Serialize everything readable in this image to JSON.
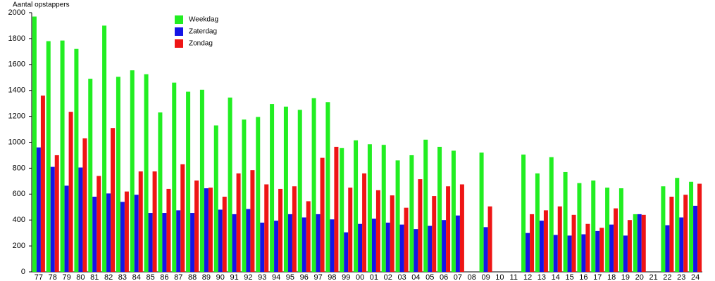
{
  "chart_data": {
    "type": "bar",
    "y_label": "Aantal opstappers",
    "categories": [
      "77",
      "78",
      "79",
      "80",
      "81",
      "82",
      "83",
      "84",
      "85",
      "86",
      "87",
      "88",
      "89",
      "90",
      "91",
      "92",
      "93",
      "94",
      "95",
      "96",
      "97",
      "98",
      "99",
      "00",
      "01",
      "02",
      "03",
      "04",
      "05",
      "06",
      "07",
      "08",
      "09",
      "10",
      "11",
      "12",
      "13",
      "14",
      "15",
      "16",
      "17",
      "18",
      "19",
      "20",
      "21",
      "22",
      "23",
      "24"
    ],
    "series": [
      {
        "name": "Weekdag",
        "color": "#22ee22",
        "values": [
          1970,
          1780,
          1785,
          1720,
          1490,
          1900,
          1505,
          1555,
          1525,
          1230,
          1460,
          1390,
          1405,
          1130,
          1345,
          1175,
          1195,
          1295,
          1275,
          1250,
          1340,
          1310,
          955,
          1015,
          985,
          980,
          860,
          900,
          1020,
          965,
          935,
          null,
          920,
          null,
          null,
          905,
          760,
          885,
          770,
          685,
          705,
          650,
          645,
          445,
          null,
          660,
          725,
          695
        ]
      },
      {
        "name": "Zaterdag",
        "color": "#1515e6",
        "values": [
          960,
          810,
          665,
          805,
          580,
          605,
          540,
          595,
          455,
          455,
          475,
          455,
          645,
          480,
          445,
          485,
          380,
          395,
          445,
          420,
          445,
          405,
          305,
          370,
          410,
          380,
          365,
          330,
          355,
          400,
          435,
          null,
          345,
          null,
          null,
          300,
          395,
          285,
          280,
          290,
          315,
          365,
          280,
          445,
          null,
          360,
          420,
          510
        ]
      },
      {
        "name": "Zondag",
        "color": "#ee1515",
        "values": [
          1360,
          900,
          1235,
          1030,
          740,
          1110,
          620,
          775,
          775,
          640,
          830,
          705,
          650,
          580,
          760,
          785,
          675,
          640,
          660,
          545,
          880,
          965,
          650,
          760,
          630,
          590,
          495,
          715,
          585,
          660,
          675,
          null,
          505,
          null,
          null,
          445,
          475,
          505,
          440,
          370,
          340,
          490,
          400,
          440,
          null,
          580,
          595,
          680
        ]
      }
    ],
    "ylim": [
      0,
      2000
    ],
    "yticks": [
      0,
      200,
      400,
      600,
      800,
      1000,
      1200,
      1400,
      1600,
      1800,
      2000
    ],
    "grid": false
  }
}
